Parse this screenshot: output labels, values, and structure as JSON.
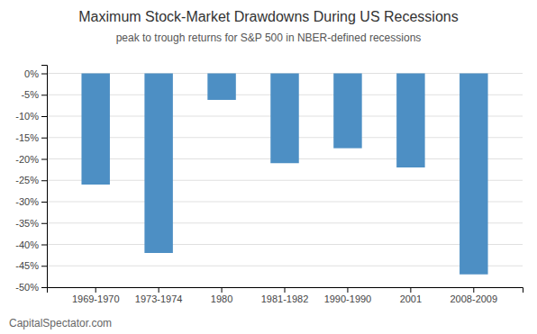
{
  "chart_data": {
    "type": "bar",
    "title": "Maximum Stock-Market Drawdowns During US Recessions",
    "subtitle": "peak to trough returns for S&P 500 in NBER-defined  recessions",
    "annotations": [
      "CapitalSpectator.com"
    ],
    "categories": [
      "1969-1970",
      "1973-1974",
      "1980",
      "1981-1982",
      "1990-1990",
      "2001",
      "2008-2009"
    ],
    "values": [
      -26.0,
      -42.0,
      -6.2,
      -21.0,
      -17.5,
      -22.0,
      -47.0
    ],
    "color": "#4d8fc4",
    "ylim": [
      -50,
      2
    ],
    "yticks": [
      {
        "value": 0,
        "label": "0%"
      },
      {
        "value": -5,
        "label": "-5%"
      },
      {
        "value": -10,
        "label": "-10%"
      },
      {
        "value": -15,
        "label": "-15%"
      },
      {
        "value": -20,
        "label": "-20%"
      },
      {
        "value": -25,
        "label": "-25%"
      },
      {
        "value": -30,
        "label": "-30%"
      },
      {
        "value": -35,
        "label": "-35%"
      },
      {
        "value": -40,
        "label": "-40%"
      },
      {
        "value": -45,
        "label": "-45%"
      },
      {
        "value": -50,
        "label": "-50%"
      }
    ],
    "grid": true
  }
}
